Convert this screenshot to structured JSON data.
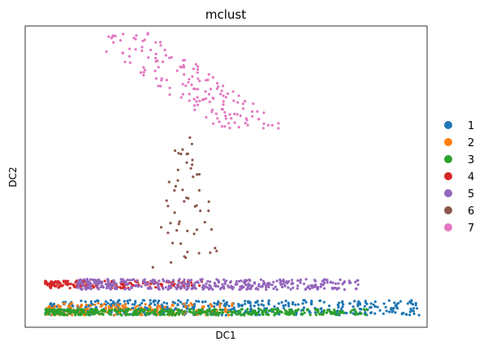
{
  "chart_data": {
    "type": "scatter",
    "title": "mclust",
    "xlabel": "DC1",
    "ylabel": "DC2",
    "xlim": [
      0,
      100
    ],
    "ylim": [
      0,
      100
    ],
    "grid": false,
    "legend_position": "right",
    "series": [
      {
        "name": "1",
        "color": "#1f77b4",
        "n": 480,
        "x": [
          6,
          98
        ],
        "y": [
          4,
          9
        ],
        "outliers": [
          [
            96,
            8
          ]
        ]
      },
      {
        "name": "2",
        "color": "#ff7f0e",
        "n": 200,
        "x": [
          5,
          52
        ],
        "y": [
          4,
          8
        ]
      },
      {
        "name": "3",
        "color": "#2ca02c",
        "n": 450,
        "x": [
          5,
          85
        ],
        "y": [
          4,
          6
        ]
      },
      {
        "name": "4",
        "color": "#d62728",
        "n": 180,
        "x": [
          5,
          44
        ],
        "y": [
          13,
          15.5
        ]
      },
      {
        "name": "5",
        "color": "#9467bd",
        "n": 420,
        "x": [
          13,
          83
        ],
        "y": [
          12.5,
          16
        ]
      },
      {
        "name": "6",
        "color": "#8c564b",
        "n": 55,
        "x": [
          26,
          51
        ],
        "y": [
          18,
          63
        ]
      },
      {
        "name": "7",
        "color": "#e377c2",
        "n": 160,
        "x": [
          13,
          63
        ],
        "y": [
          66,
          98
        ]
      }
    ]
  }
}
